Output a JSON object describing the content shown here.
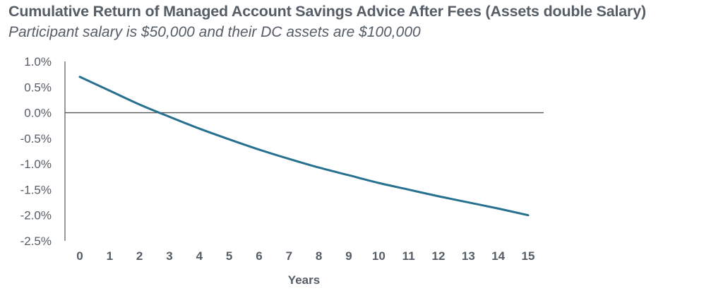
{
  "chart_data": {
    "type": "line",
    "title": "Cumulative Return of Managed Account Savings Advice After Fees (Assets double Salary)",
    "subtitle": "Participant salary is $50,000 and their DC assets are $100,000",
    "xlabel": "Years",
    "ylabel": "",
    "x": [
      0,
      1,
      2,
      3,
      4,
      5,
      6,
      7,
      8,
      9,
      10,
      11,
      12,
      13,
      14,
      15
    ],
    "series": [
      {
        "values": [
          0.7,
          0.43,
          0.16,
          -0.08,
          -0.31,
          -0.52,
          -0.72,
          -0.9,
          -1.07,
          -1.22,
          -1.37,
          -1.5,
          -1.63,
          -1.75,
          -1.87,
          -2.0
        ],
        "color": "#27708f"
      }
    ],
    "xlim": [
      0,
      15
    ],
    "ylim": [
      -2.5,
      1.0
    ],
    "x_ticks": [
      "0",
      "1",
      "2",
      "3",
      "4",
      "5",
      "6",
      "7",
      "8",
      "9",
      "10",
      "11",
      "12",
      "13",
      "14",
      "15"
    ],
    "y_ticks": [
      {
        "value": 1.0,
        "label": "1.0%"
      },
      {
        "value": 0.5,
        "label": "0.5%"
      },
      {
        "value": 0.0,
        "label": "0.0%"
      },
      {
        "value": -0.5,
        "label": "-0.5%"
      },
      {
        "value": -1.0,
        "label": "-1.0%"
      },
      {
        "value": -1.5,
        "label": "-1.5%"
      },
      {
        "value": -2.0,
        "label": "-2.0%"
      },
      {
        "value": -2.5,
        "label": "-2.5%"
      }
    ],
    "grid": false,
    "legend": "none",
    "zero_line_color": "#555555",
    "axis_color": "#555555"
  }
}
